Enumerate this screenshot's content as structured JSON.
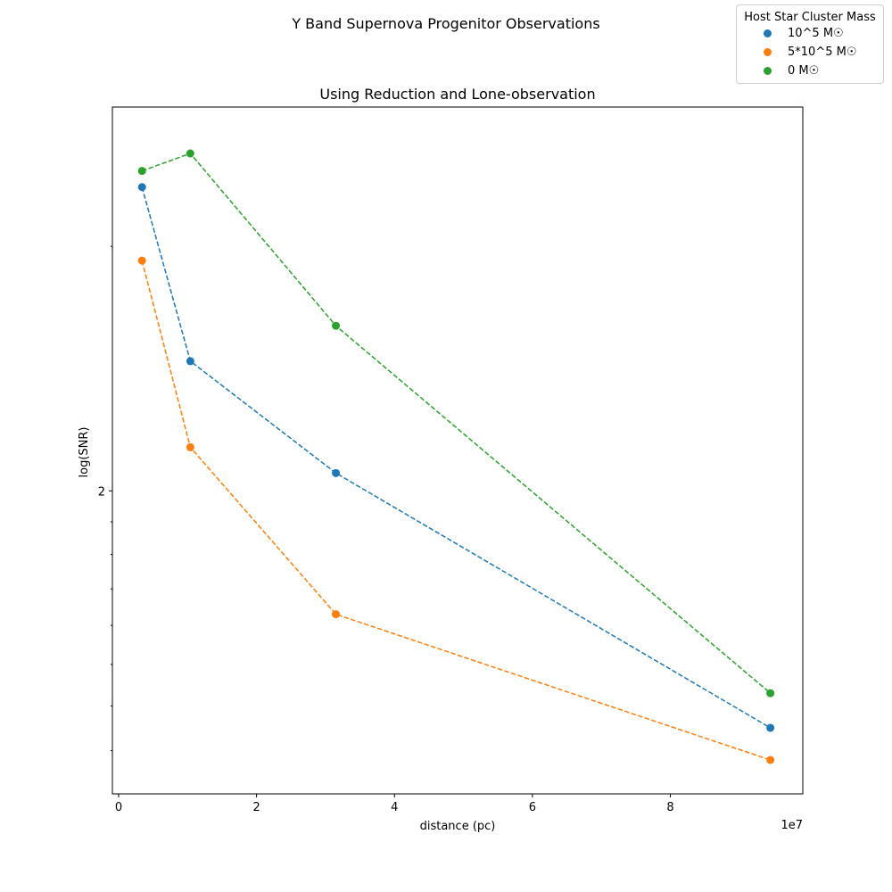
{
  "chart_data": {
    "type": "line",
    "title": "Y Band Supernova Progenitor Observations",
    "subtitle": "Using Reduction and Lone-observation",
    "xlabel": "distance (pc)",
    "ylabel": "log(SNR)",
    "x_offset_label": "1e7",
    "x_ticks": [
      "0",
      "2",
      "4",
      "6",
      "8"
    ],
    "y_ticks": [
      "2"
    ],
    "xlim": [
      -0.09,
      9.92
    ],
    "ylim": [
      1.21,
      3.78
    ],
    "y_scale": "log",
    "x_scale_factor": 10000000,
    "grid": false,
    "legend_title": "Host Star Cluster Mass",
    "legend_placement": "top-right (outside plot, figure corner)",
    "x": [
      0.34,
      1.04,
      3.15,
      9.45
    ],
    "series": [
      {
        "name": "10^5 M☉",
        "color": "#1f77b4",
        "values": [
          3.31,
          2.48,
          2.06,
          1.35
        ]
      },
      {
        "name": "5*10^5 M☉",
        "color": "#ff7f0e",
        "values": [
          2.93,
          2.15,
          1.63,
          1.28
        ]
      },
      {
        "name": "0 M☉",
        "color": "#2ca02c",
        "values": [
          3.4,
          3.5,
          2.63,
          1.43
        ]
      }
    ]
  }
}
